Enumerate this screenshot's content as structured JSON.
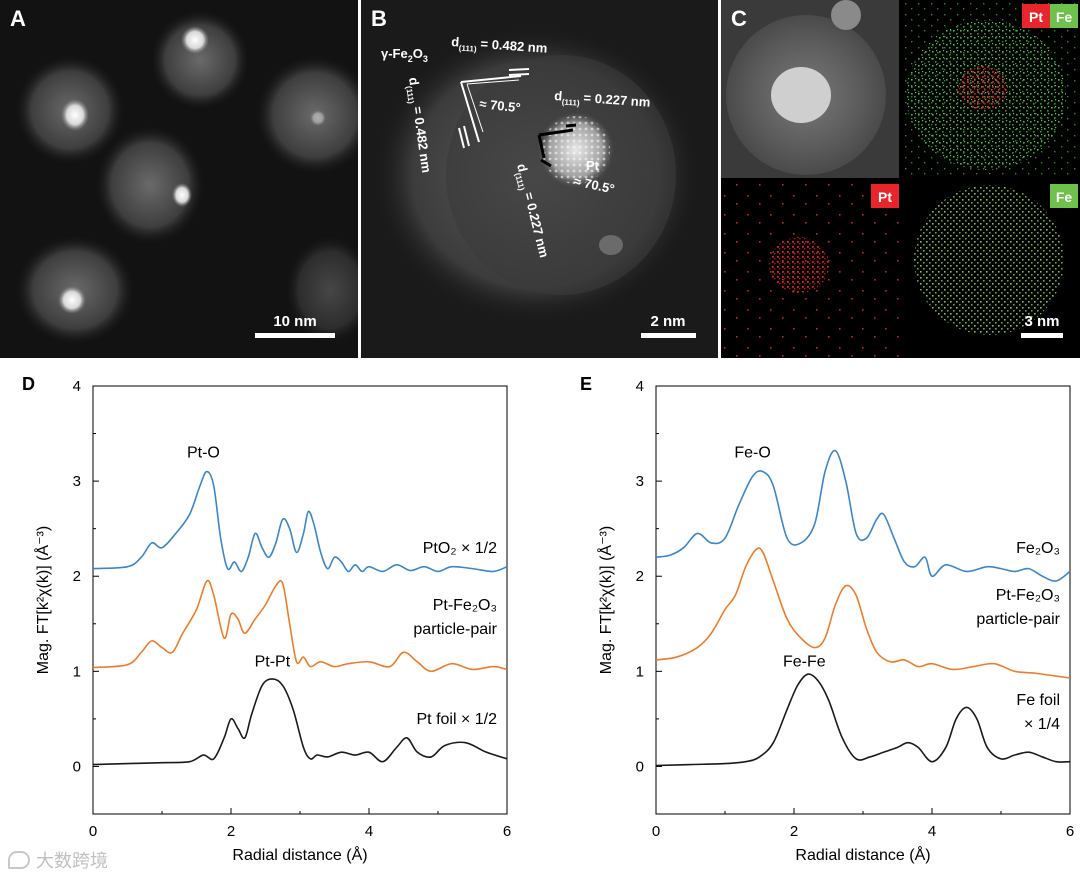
{
  "panels": {
    "A": {
      "label": "A",
      "scalebar": "10 nm"
    },
    "B": {
      "label": "B",
      "scalebar": "2 nm",
      "phase_fe": "γ-Fe",
      "phase_fe_sub2": "2",
      "phase_fe_o": "O",
      "phase_fe_sub3": "3",
      "d_top": "d",
      "d_top_idx": "(111)",
      "d_top_val": " = 0.482 nm",
      "d_left": "d",
      "d_left_idx": "(111)",
      "d_left_val": " = 0.482 nm",
      "d_right": "d",
      "d_right_idx": "(111)",
      "d_right_val": " = 0.227 nm",
      "d_diag": "d",
      "d_diag_idx": "(111)",
      "d_diag_val": " = 0.227 nm",
      "angle1": "≈ 70.5°",
      "angle2": "≈ 70.5°",
      "pt": "Pt"
    },
    "C": {
      "label": "C",
      "scalebar": "3 nm",
      "tag_pt": "Pt",
      "tag_fe": "Fe",
      "tag_pt2": "Pt",
      "tag_fe2": "Fe"
    },
    "D": {
      "label": "D"
    },
    "E": {
      "label": "E"
    }
  },
  "watermark": "大数跨境",
  "chart_data": [
    {
      "id": "D",
      "type": "line",
      "xlabel": "Radial distance (Å)",
      "ylabel": "Mag. FT[k²χ(k)] (Å⁻³)",
      "xlim": [
        0,
        6
      ],
      "ylim": [
        -0.5,
        4
      ],
      "xticks": [
        "0",
        "2",
        "4",
        "6"
      ],
      "yticks": [
        "0",
        "1",
        "2",
        "3",
        "4"
      ],
      "annotations": [
        {
          "text": "Pt-O",
          "x": 1.6,
          "y": 3.25
        },
        {
          "text": "Pt-Pt",
          "x": 2.6,
          "y": 1.05
        }
      ],
      "series": [
        {
          "name": "PtO₂ × 1/2",
          "name2": "",
          "color": "#3b86c9",
          "x": [
            0,
            0.5,
            0.7,
            0.85,
            1.0,
            1.2,
            1.4,
            1.55,
            1.65,
            1.75,
            1.85,
            1.95,
            2.05,
            2.15,
            2.25,
            2.35,
            2.45,
            2.55,
            2.65,
            2.75,
            2.85,
            2.95,
            3.05,
            3.12,
            3.2,
            3.3,
            3.4,
            3.5,
            3.6,
            3.7,
            3.8,
            3.9,
            4.0,
            4.2,
            4.4,
            4.6,
            4.8,
            5.0,
            5.2,
            5.5,
            5.8,
            6.0
          ],
          "y": [
            2.08,
            2.1,
            2.2,
            2.35,
            2.3,
            2.45,
            2.65,
            2.95,
            3.1,
            2.95,
            2.4,
            2.08,
            2.15,
            2.05,
            2.2,
            2.45,
            2.3,
            2.2,
            2.35,
            2.6,
            2.5,
            2.25,
            2.45,
            2.68,
            2.55,
            2.25,
            2.08,
            2.2,
            2.15,
            2.05,
            2.12,
            2.05,
            2.1,
            2.05,
            2.12,
            2.06,
            2.1,
            2.05,
            2.1,
            2.08,
            2.05,
            2.1
          ]
        },
        {
          "name": "Pt-Fe₂O₃",
          "name2": "particle-pair",
          "color": "#ee7d2a",
          "x": [
            0,
            0.5,
            0.7,
            0.85,
            1.0,
            1.15,
            1.3,
            1.5,
            1.65,
            1.75,
            1.9,
            2.0,
            2.1,
            2.2,
            2.35,
            2.5,
            2.65,
            2.75,
            2.85,
            2.95,
            3.05,
            3.15,
            3.3,
            3.5,
            3.7,
            4.0,
            4.3,
            4.5,
            4.7,
            4.9,
            5.2,
            5.5,
            5.8,
            6.0
          ],
          "y": [
            1.04,
            1.07,
            1.2,
            1.32,
            1.25,
            1.2,
            1.4,
            1.65,
            1.95,
            1.8,
            1.35,
            1.6,
            1.55,
            1.4,
            1.55,
            1.7,
            1.9,
            1.92,
            1.5,
            1.1,
            1.15,
            1.05,
            1.1,
            1.05,
            1.08,
            1.1,
            1.05,
            1.2,
            1.1,
            1.0,
            1.08,
            1.02,
            1.05,
            1.02
          ]
        },
        {
          "name": "Pt foil × 1/2",
          "name2": "",
          "color": "#1a1a1a",
          "x": [
            0,
            0.5,
            1.0,
            1.4,
            1.6,
            1.75,
            1.9,
            2.0,
            2.1,
            2.2,
            2.3,
            2.45,
            2.6,
            2.75,
            2.9,
            3.05,
            3.15,
            3.25,
            3.4,
            3.6,
            3.8,
            4.0,
            4.2,
            4.4,
            4.55,
            4.7,
            4.9,
            5.1,
            5.4,
            5.7,
            6.0
          ],
          "y": [
            0.02,
            0.03,
            0.04,
            0.05,
            0.12,
            0.08,
            0.3,
            0.5,
            0.4,
            0.3,
            0.55,
            0.85,
            0.92,
            0.85,
            0.6,
            0.2,
            0.08,
            0.12,
            0.1,
            0.15,
            0.12,
            0.15,
            0.05,
            0.2,
            0.3,
            0.15,
            0.1,
            0.22,
            0.25,
            0.15,
            0.08
          ]
        }
      ]
    },
    {
      "id": "E",
      "type": "line",
      "xlabel": "Radial distance (Å)",
      "ylabel": "Mag. FT[k²χ(k)] (Å⁻³)",
      "xlim": [
        0,
        6
      ],
      "ylim": [
        -0.5,
        4
      ],
      "xticks": [
        "0",
        "2",
        "4",
        "6"
      ],
      "yticks": [
        "0",
        "1",
        "2",
        "3",
        "4"
      ],
      "annotations": [
        {
          "text": "Fe-O",
          "x": 1.4,
          "y": 3.25
        },
        {
          "text": "Fe-Fe",
          "x": 2.15,
          "y": 1.05
        }
      ],
      "series": [
        {
          "name": "Fe₂O₃",
          "name2": "",
          "color": "#3b86c9",
          "x": [
            0,
            0.2,
            0.4,
            0.6,
            0.8,
            1.0,
            1.2,
            1.4,
            1.55,
            1.7,
            1.9,
            2.1,
            2.3,
            2.45,
            2.6,
            2.75,
            2.9,
            3.05,
            3.2,
            3.3,
            3.45,
            3.6,
            3.75,
            3.9,
            4.0,
            4.2,
            4.5,
            4.8,
            5.0,
            5.2,
            5.4,
            5.6,
            5.8,
            6.0
          ],
          "y": [
            2.2,
            2.22,
            2.3,
            2.45,
            2.35,
            2.4,
            2.75,
            3.05,
            3.1,
            2.95,
            2.4,
            2.35,
            2.55,
            3.1,
            3.32,
            3.0,
            2.45,
            2.4,
            2.6,
            2.65,
            2.4,
            2.15,
            2.1,
            2.2,
            2.0,
            2.12,
            2.05,
            2.1,
            2.08,
            2.05,
            2.08,
            2.0,
            1.95,
            2.05
          ]
        },
        {
          "name": "Pt-Fe₂O₃",
          "name2": "particle-pair",
          "color": "#ee7d2a",
          "x": [
            0,
            0.3,
            0.6,
            0.8,
            1.0,
            1.15,
            1.3,
            1.45,
            1.55,
            1.7,
            1.9,
            2.1,
            2.3,
            2.45,
            2.6,
            2.75,
            2.9,
            3.05,
            3.2,
            3.4,
            3.6,
            3.8,
            4.0,
            4.3,
            4.6,
            4.9,
            5.2,
            5.5,
            5.8,
            6.0
          ],
          "y": [
            1.12,
            1.15,
            1.25,
            1.4,
            1.65,
            1.8,
            2.1,
            2.28,
            2.25,
            1.95,
            1.55,
            1.35,
            1.25,
            1.35,
            1.7,
            1.9,
            1.8,
            1.45,
            1.2,
            1.1,
            1.12,
            1.05,
            1.08,
            1.02,
            1.05,
            1.08,
            1.0,
            0.98,
            0.95,
            0.93
          ]
        },
        {
          "name": "Fe foil",
          "name2": "× 1/4",
          "color": "#1a1a1a",
          "x": [
            0,
            0.5,
            1.0,
            1.3,
            1.5,
            1.7,
            1.9,
            2.05,
            2.2,
            2.35,
            2.5,
            2.7,
            2.9,
            3.1,
            3.3,
            3.5,
            3.65,
            3.8,
            4.0,
            4.2,
            4.35,
            4.5,
            4.65,
            4.8,
            5.0,
            5.2,
            5.4,
            5.6,
            5.8,
            6.0
          ],
          "y": [
            0.01,
            0.02,
            0.03,
            0.05,
            0.1,
            0.25,
            0.6,
            0.85,
            0.97,
            0.9,
            0.7,
            0.3,
            0.08,
            0.1,
            0.15,
            0.2,
            0.25,
            0.2,
            0.05,
            0.2,
            0.5,
            0.62,
            0.5,
            0.2,
            0.08,
            0.12,
            0.15,
            0.1,
            0.05,
            0.05
          ]
        }
      ]
    }
  ]
}
